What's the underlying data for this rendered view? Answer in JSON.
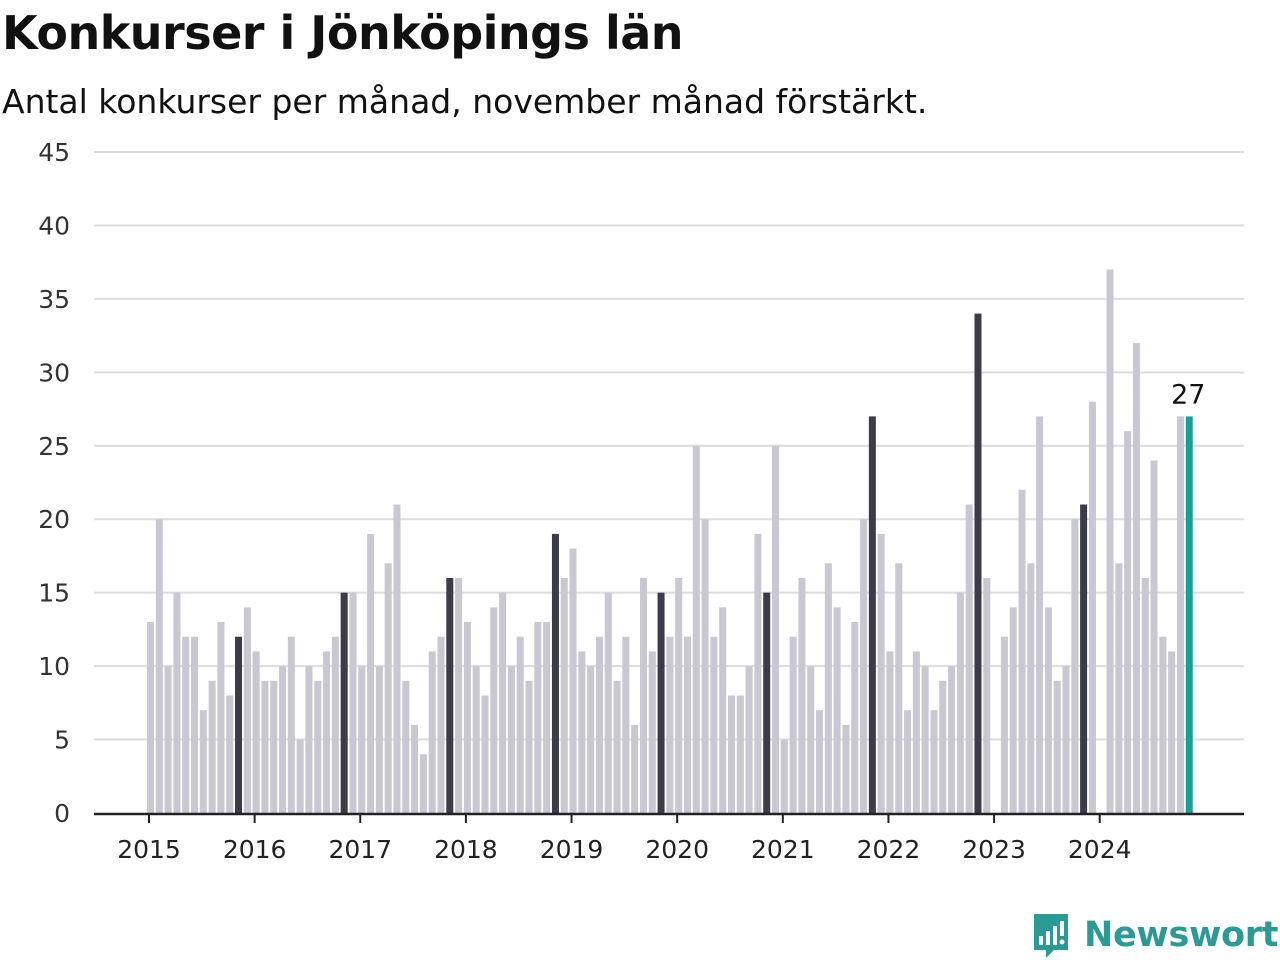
{
  "title": "Konkurser i Jönköpings län",
  "subtitle": "Antal konkurser per månad, november månad förstärkt.",
  "brand": {
    "name": "Newsworthy",
    "color": "#2a9a94",
    "icon": "newsworthy-logo-icon"
  },
  "colors": {
    "base": "#c8c7d2",
    "highlight": "#3c3b49",
    "latest": "#16a096",
    "grid": "#dcdcdc",
    "axis": "#222222"
  },
  "chart_data": {
    "type": "bar",
    "title": "Konkurser i Jönköpings län",
    "subtitle": "Antal konkurser per månad, november månad förstärkt.",
    "xlabel": "",
    "ylabel": "",
    "ylim": [
      0,
      45
    ],
    "yticks": [
      0,
      5,
      10,
      15,
      20,
      25,
      30,
      35,
      40,
      45
    ],
    "x_tick_labels": [
      "2015",
      "2016",
      "2017",
      "2018",
      "2019",
      "2020",
      "2021",
      "2022",
      "2023",
      "2024"
    ],
    "grid": true,
    "start": "2015-01",
    "end": "2024-11",
    "highlight_month": "november",
    "latest_value_label": "27",
    "values": [
      13,
      20,
      10,
      15,
      12,
      12,
      7,
      9,
      13,
      8,
      12,
      14,
      11,
      9,
      9,
      10,
      12,
      5,
      10,
      9,
      11,
      12,
      15,
      15,
      10,
      19,
      10,
      17,
      21,
      9,
      6,
      4,
      11,
      12,
      16,
      16,
      13,
      10,
      8,
      14,
      15,
      10,
      12,
      9,
      13,
      13,
      19,
      16,
      18,
      11,
      10,
      12,
      15,
      9,
      12,
      6,
      16,
      11,
      15,
      12,
      16,
      12,
      25,
      20,
      12,
      14,
      8,
      8,
      10,
      19,
      15,
      25,
      5,
      12,
      16,
      10,
      7,
      17,
      14,
      6,
      13,
      20,
      27,
      19,
      11,
      17,
      7,
      11,
      10,
      7,
      9,
      10,
      15,
      21,
      34,
      16,
      0,
      12,
      14,
      22,
      17,
      27,
      14,
      9,
      10,
      20,
      21,
      28,
      0,
      37,
      17,
      26,
      32,
      16,
      24,
      12,
      11,
      27,
      27
    ]
  }
}
